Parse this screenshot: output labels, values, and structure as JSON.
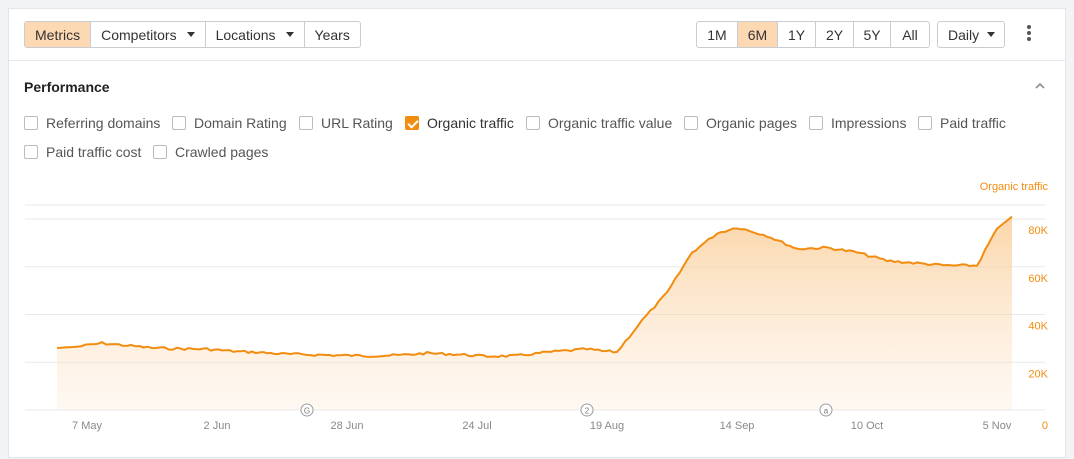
{
  "toolbar": {
    "left_buttons": [
      {
        "label": "Metrics",
        "active": true,
        "dropdown": false
      },
      {
        "label": "Competitors",
        "active": false,
        "dropdown": true
      },
      {
        "label": "Locations",
        "active": false,
        "dropdown": true
      },
      {
        "label": "Years",
        "active": false,
        "dropdown": false
      }
    ],
    "ranges": [
      {
        "label": "1M",
        "active": false
      },
      {
        "label": "6M",
        "active": true
      },
      {
        "label": "1Y",
        "active": false
      },
      {
        "label": "2Y",
        "active": false
      },
      {
        "label": "5Y",
        "active": false
      },
      {
        "label": "All",
        "active": false
      }
    ],
    "interval": "Daily",
    "more_icon": "kebab-menu-icon"
  },
  "performance": {
    "title": "Performance",
    "collapse_icon": "chevron-up-icon",
    "checkboxes": [
      {
        "label": "Referring domains",
        "checked": false
      },
      {
        "label": "Domain Rating",
        "checked": false
      },
      {
        "label": "URL Rating",
        "checked": false
      },
      {
        "label": "Organic traffic",
        "checked": true
      },
      {
        "label": "Organic traffic value",
        "checked": false
      },
      {
        "label": "Organic pages",
        "checked": false
      },
      {
        "label": "Impressions",
        "checked": false
      },
      {
        "label": "Paid traffic",
        "checked": false
      },
      {
        "label": "Paid traffic cost",
        "checked": false
      },
      {
        "label": "Crawled pages",
        "checked": false
      }
    ]
  },
  "colors": {
    "accent": "#f28c0f",
    "active_bg": "#fcd9b3",
    "grid": "#e8e9ec",
    "axis_text": "#888888"
  },
  "chart_data": {
    "type": "area",
    "series_label": "Organic traffic",
    "x_tick_labels": [
      "7 May",
      "2 Jun",
      "28 Jun",
      "24 Jul",
      "19 Aug",
      "14 Sep",
      "10 Oct",
      "5 Nov"
    ],
    "y_tick_labels": [
      "0",
      "20K",
      "40K",
      "60K",
      "80K"
    ],
    "ylim": [
      0,
      80000
    ],
    "grid": true,
    "annotations": [
      "G",
      "2",
      "a"
    ],
    "x": [
      "2024-05-01",
      "2024-05-05",
      "2024-05-10",
      "2024-05-15",
      "2024-05-20",
      "2024-05-25",
      "2024-05-31",
      "2024-06-06",
      "2024-06-09",
      "2024-06-15",
      "2024-06-20",
      "2024-06-26",
      "2024-07-02",
      "2024-07-08",
      "2024-07-14",
      "2024-07-20",
      "2024-07-26",
      "2024-08-01",
      "2024-08-07",
      "2024-08-15",
      "2024-08-18",
      "2024-08-21",
      "2024-08-26",
      "2024-08-31",
      "2024-09-05",
      "2024-09-10",
      "2024-09-14",
      "2024-09-20",
      "2024-09-26",
      "2024-10-02",
      "2024-10-08",
      "2024-10-14",
      "2024-10-20",
      "2024-10-26",
      "2024-11-01",
      "2024-11-05",
      "2024-11-08"
    ],
    "values": [
      26000,
      26500,
      28000,
      27000,
      26000,
      25700,
      25500,
      24500,
      24300,
      23500,
      23200,
      22900,
      22700,
      22900,
      23800,
      23300,
      22500,
      22700,
      24200,
      25500,
      24700,
      24300,
      37500,
      49000,
      66000,
      74000,
      76500,
      73000,
      67500,
      68000,
      66000,
      62500,
      61500,
      60500,
      60500,
      76000,
      81000
    ]
  }
}
